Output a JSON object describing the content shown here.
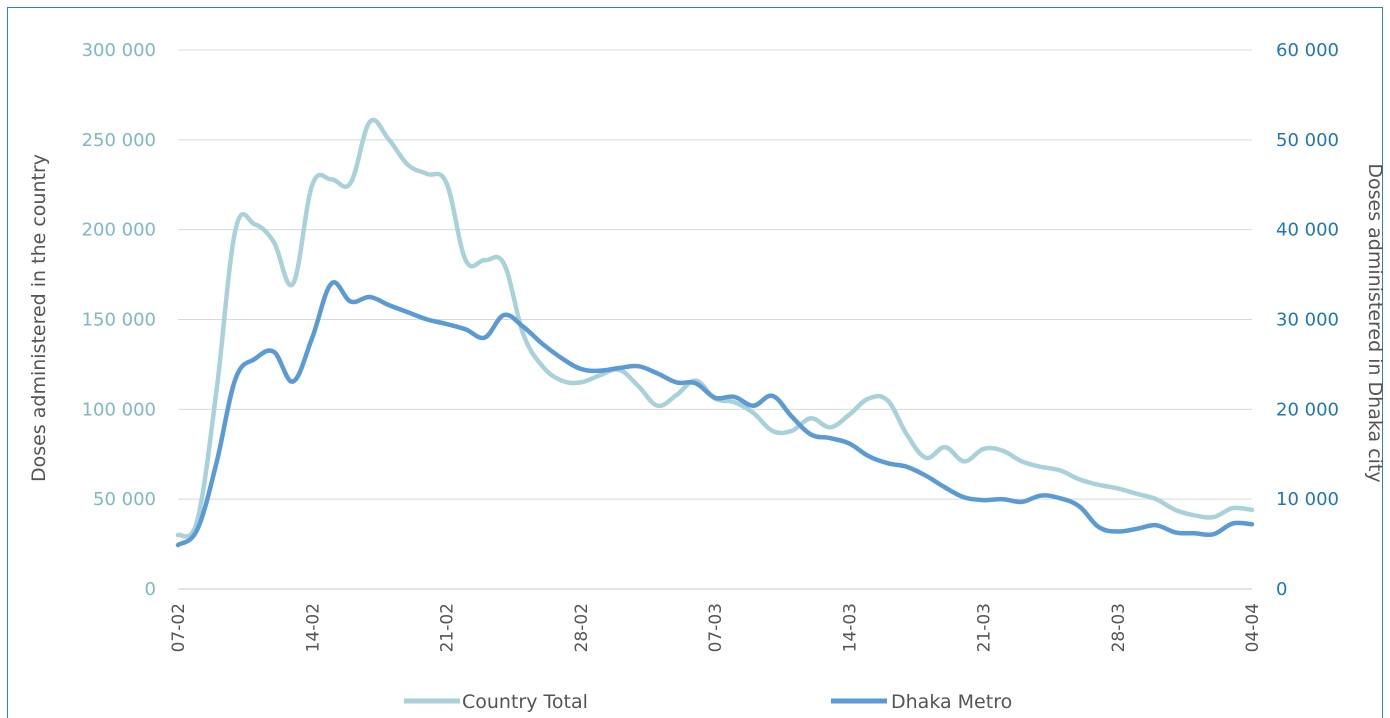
{
  "chart_data": {
    "type": "line",
    "title": "",
    "ylabel_left": "Doses administered in the country",
    "ylabel_right": "Doses administered in Dhaka city",
    "ylim_left": [
      0,
      300000
    ],
    "ylim_right": [
      0,
      60000
    ],
    "yticks_left": [
      "0",
      "50 000",
      "100 000",
      "150 000",
      "200 000",
      "250 000",
      "300 000"
    ],
    "yticks_right": [
      "0",
      "10 000",
      "20 000",
      "30 000",
      "40 000",
      "50 000",
      "60 000"
    ],
    "x": [
      "07-02",
      "08-02",
      "09-02",
      "10-02",
      "11-02",
      "12-02",
      "13-02",
      "14-02",
      "15-02",
      "16-02",
      "17-02",
      "18-02",
      "19-02",
      "20-02",
      "21-02",
      "22-02",
      "23-02",
      "24-02",
      "25-02",
      "26-02",
      "27-02",
      "28-02",
      "01-03",
      "02-03",
      "03-03",
      "04-03",
      "05-03",
      "06-03",
      "07-03",
      "08-03",
      "09-03",
      "10-03",
      "11-03",
      "12-03",
      "13-03",
      "14-03",
      "15-03",
      "16-03",
      "17-03",
      "18-03",
      "19-03",
      "20-03",
      "21-03",
      "22-03",
      "23-03",
      "24-03",
      "25-03",
      "26-03",
      "27-03",
      "28-03",
      "29-03",
      "30-03",
      "31-03",
      "01-04",
      "02-04",
      "03-04",
      "04-04"
    ],
    "xticks": [
      "07-02",
      "14-02",
      "21-02",
      "28-02",
      "07-03",
      "14-03",
      "21-03",
      "28-03",
      "04-04"
    ],
    "series": [
      {
        "name": "Country Total",
        "axis": "left",
        "color": "#a9d1da",
        "values": [
          30000,
          38000,
          110000,
          200000,
          203000,
          193000,
          170000,
          225000,
          228000,
          226000,
          260000,
          250000,
          236000,
          231000,
          226000,
          183000,
          183000,
          181000,
          142000,
          124000,
          116000,
          115000,
          119000,
          122000,
          113000,
          102000,
          108000,
          116000,
          106000,
          104000,
          98000,
          88000,
          88000,
          95000,
          90000,
          97000,
          106000,
          105000,
          86000,
          73000,
          79000,
          71000,
          78000,
          77000,
          71000,
          68000,
          66000,
          61000,
          58000,
          56000,
          53000,
          50000,
          44000,
          41000,
          40000,
          45000,
          44000
        ]
      },
      {
        "name": "Dhaka Metro",
        "axis": "right",
        "color": "#5b9bd5",
        "values": [
          4900,
          6600,
          14000,
          23400,
          25600,
          26400,
          23100,
          28000,
          34000,
          32000,
          32500,
          31600,
          30800,
          30000,
          29500,
          28900,
          28000,
          30500,
          29200,
          27300,
          25700,
          24500,
          24300,
          24600,
          24800,
          24000,
          23000,
          22900,
          21300,
          21400,
          20400,
          21500,
          19200,
          17200,
          16800,
          16200,
          14800,
          14000,
          13600,
          12600,
          11300,
          10200,
          9900,
          10000,
          9700,
          10400,
          10100,
          9200,
          6900,
          6400,
          6700,
          7100,
          6300,
          6200,
          6100,
          7300,
          7200
        ]
      }
    ],
    "legend": {
      "position": "bottom",
      "entries": [
        "Country Total",
        "Dhaka Metro"
      ]
    },
    "grid": true
  }
}
